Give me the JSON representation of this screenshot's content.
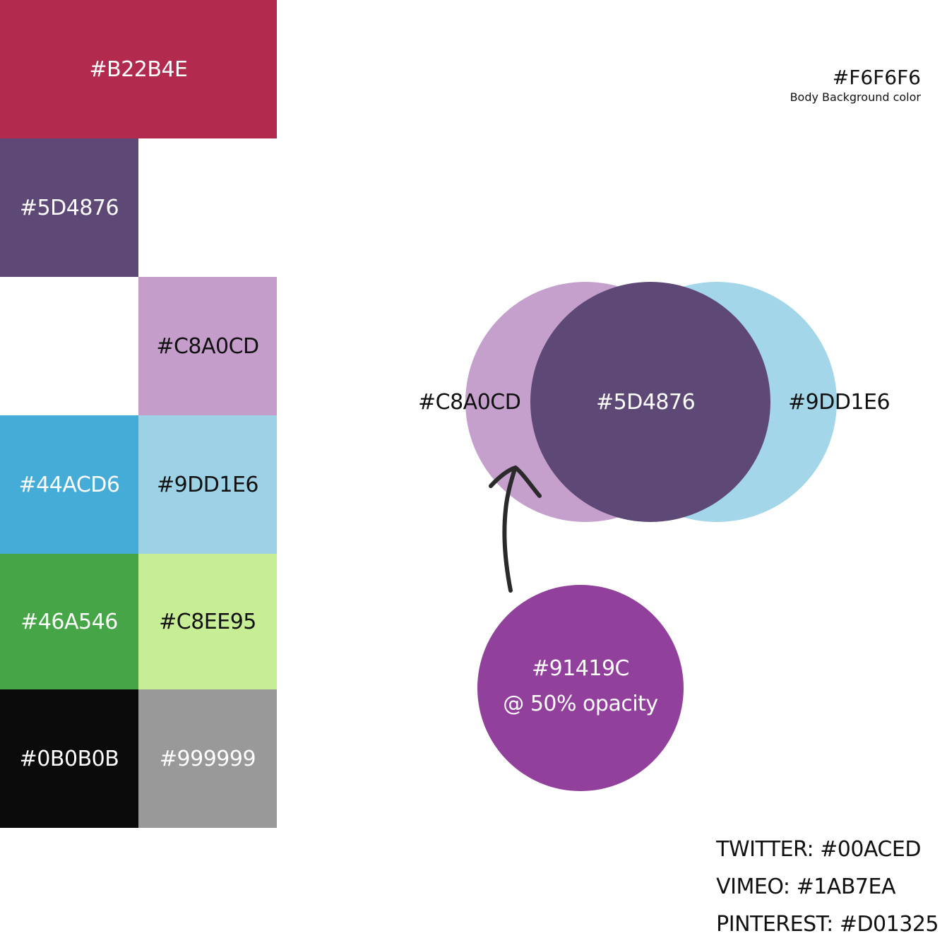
{
  "palette": {
    "swatches": [
      {
        "label": "#B22B4E",
        "color": "#B22B4E"
      },
      {
        "label": "#5D4876",
        "color": "#5D4876"
      },
      {
        "label": "#C8A0CD",
        "color": "#C8A0CD"
      },
      {
        "label": "#44ACD6",
        "color": "#44ACD6"
      },
      {
        "label": "#9DD1E6",
        "color": "#9DD1E6"
      },
      {
        "label": "#46A546",
        "color": "#46A546"
      },
      {
        "label": "#C8EE95",
        "color": "#C8EE95"
      },
      {
        "label": "#0B0B0B",
        "color": "#0B0B0B"
      },
      {
        "label": "#999999",
        "color": "#999999"
      }
    ]
  },
  "body_background": {
    "hex": "#F6F6F6",
    "caption": "Body Background color"
  },
  "venn": {
    "left_label": "#C8A0CD",
    "center_label": "#5D4876",
    "right_label": "#9DD1E6",
    "left_color": "#C8A0CD",
    "center_color": "#5D4876",
    "right_color": "#9DD1E6"
  },
  "overlay_circle": {
    "hex": "#91419C",
    "opacity_text": "@ 50% opacity",
    "color": "#91419C"
  },
  "social": {
    "twitter": "TWITTER: #00ACED",
    "vimeo": "VIMEO: #1AB7EA",
    "pinterest": "PINTEREST: #D01325"
  }
}
